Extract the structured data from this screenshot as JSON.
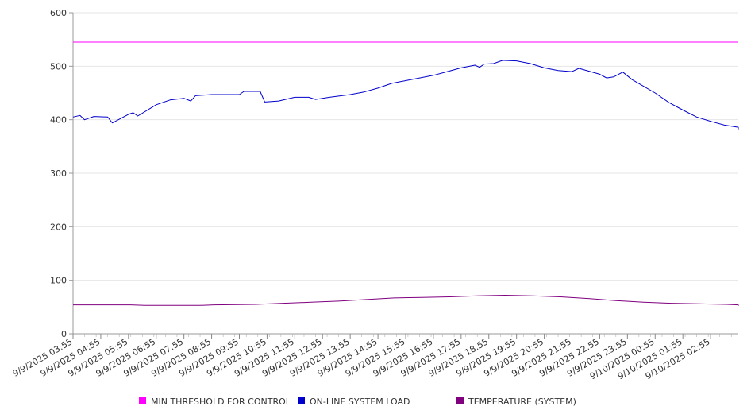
{
  "chart_data": {
    "type": "line",
    "title": "",
    "xlabel": "",
    "ylabel": "",
    "ylim": [
      0,
      600
    ],
    "y_ticks": [
      "0",
      "100",
      "200",
      "300",
      "400",
      "500",
      "600"
    ],
    "x_tick_labels": [
      "9/9/2025 03:55",
      "9/9/2025 04:55",
      "9/9/2025 05:55",
      "9/9/2025 06:55",
      "9/9/2025 07:55",
      "9/9/2025 08:55",
      "9/9/2025 09:55",
      "9/9/2025 10:55",
      "9/9/2025 11:55",
      "9/9/2025 12:55",
      "9/9/2025 13:55",
      "9/9/2025 14:55",
      "9/9/2025 15:55",
      "9/9/2025 16:55",
      "9/9/2025 17:55",
      "9/9/2025 18:55",
      "9/9/2025 19:55",
      "9/9/2025 20:55",
      "9/9/2025 21:55",
      "9/9/2025 22:55",
      "9/9/2025 23:55",
      "9/10/2025 00:55",
      "9/10/2025 01:55",
      "9/10/2025 02:55"
    ],
    "x_range": [
      "9/9/2025 03:55",
      "9/10/2025 03:55"
    ],
    "grid": {
      "horizontal": true,
      "vertical": false
    },
    "legend_position": "bottom",
    "series": [
      {
        "name": "MIN THRESHOLD FOR CONTROL",
        "color": "#ff00ff",
        "points": [
          [
            "9/9/2025 03:55",
            545
          ],
          [
            "9/10/2025 03:55",
            545
          ]
        ]
      },
      {
        "name": "ON-LINE SYSTEM LOAD",
        "color": "#0000cc",
        "points": [
          [
            "9/9/2025 03:55",
            405
          ],
          [
            "9/9/2025 04:10",
            408
          ],
          [
            "9/9/2025 04:20",
            400
          ],
          [
            "9/9/2025 04:40",
            406
          ],
          [
            "9/9/2025 05:10",
            405
          ],
          [
            "9/9/2025 05:20",
            394
          ],
          [
            "9/9/2025 05:40",
            403
          ],
          [
            "9/9/2025 05:55",
            410
          ],
          [
            "9/9/2025 06:05",
            413
          ],
          [
            "9/9/2025 06:15",
            407
          ],
          [
            "9/9/2025 06:55",
            428
          ],
          [
            "9/9/2025 07:25",
            437
          ],
          [
            "9/9/2025 07:55",
            440
          ],
          [
            "9/9/2025 08:10",
            435
          ],
          [
            "9/9/2025 08:20",
            445
          ],
          [
            "9/9/2025 08:55",
            447
          ],
          [
            "9/9/2025 09:55",
            447
          ],
          [
            "9/9/2025 10:05",
            453
          ],
          [
            "9/9/2025 10:40",
            453
          ],
          [
            "9/9/2025 10:50",
            433
          ],
          [
            "9/9/2025 11:20",
            435
          ],
          [
            "9/9/2025 11:55",
            442
          ],
          [
            "9/9/2025 12:25",
            442
          ],
          [
            "9/9/2025 12:40",
            438
          ],
          [
            "9/9/2025 13:10",
            442
          ],
          [
            "9/9/2025 13:55",
            447
          ],
          [
            "9/9/2025 14:25",
            452
          ],
          [
            "9/9/2025 14:55",
            459
          ],
          [
            "9/9/2025 15:25",
            468
          ],
          [
            "9/9/2025 15:55",
            473
          ],
          [
            "9/9/2025 16:25",
            478
          ],
          [
            "9/9/2025 16:55",
            483
          ],
          [
            "9/9/2025 17:25",
            490
          ],
          [
            "9/9/2025 17:55",
            497
          ],
          [
            "9/9/2025 18:25",
            502
          ],
          [
            "9/9/2025 18:35",
            498
          ],
          [
            "9/9/2025 18:45",
            504
          ],
          [
            "9/9/2025 19:05",
            505
          ],
          [
            "9/9/2025 19:25",
            511
          ],
          [
            "9/9/2025 19:55",
            510
          ],
          [
            "9/9/2025 20:25",
            505
          ],
          [
            "9/9/2025 20:55",
            497
          ],
          [
            "9/9/2025 21:25",
            492
          ],
          [
            "9/9/2025 21:55",
            490
          ],
          [
            "9/9/2025 22:10",
            496
          ],
          [
            "9/9/2025 22:55",
            485
          ],
          [
            "9/9/2025 23:10",
            478
          ],
          [
            "9/9/2025 23:25",
            480
          ],
          [
            "9/9/2025 23:45",
            489
          ],
          [
            "9/10/2025 00:05",
            475
          ],
          [
            "9/10/2025 00:25",
            465
          ],
          [
            "9/10/2025 00:55",
            450
          ],
          [
            "9/10/2025 01:25",
            432
          ],
          [
            "9/10/2025 01:55",
            418
          ],
          [
            "9/10/2025 02:25",
            405
          ],
          [
            "9/10/2025 02:55",
            397
          ],
          [
            "9/10/2025 03:25",
            390
          ],
          [
            "9/10/2025 03:55",
            386
          ],
          [
            "9/10/2025 04:25",
            385
          ],
          [
            "9/10/2025 04:55",
            383
          ],
          [
            "9/10/2025 05:25",
            382
          ],
          [
            "9/10/2025 05:55",
            382
          ]
        ]
      },
      {
        "name": "TEMPERATURE (SYSTEM)",
        "color": "#800080",
        "points": [
          [
            "9/9/2025 03:55",
            54
          ],
          [
            "9/9/2025 06:00",
            54
          ],
          [
            "9/9/2025 06:30",
            53
          ],
          [
            "9/9/2025 08:30",
            53
          ],
          [
            "9/9/2025 09:00",
            54
          ],
          [
            "9/9/2025 10:30",
            55
          ],
          [
            "9/9/2025 11:30",
            57
          ],
          [
            "9/9/2025 12:30",
            59
          ],
          [
            "9/9/2025 13:30",
            61
          ],
          [
            "9/9/2025 14:30",
            64
          ],
          [
            "9/9/2025 15:30",
            67
          ],
          [
            "9/9/2025 16:30",
            68
          ],
          [
            "9/9/2025 17:30",
            69
          ],
          [
            "9/9/2025 18:30",
            71
          ],
          [
            "9/9/2025 19:30",
            72
          ],
          [
            "9/9/2025 20:30",
            71
          ],
          [
            "9/9/2025 21:30",
            69
          ],
          [
            "9/9/2025 22:30",
            66
          ],
          [
            "9/9/2025 23:30",
            62
          ],
          [
            "9/10/2025 00:30",
            59
          ],
          [
            "9/10/2025 01:30",
            57
          ],
          [
            "9/10/2025 02:30",
            56
          ],
          [
            "9/10/2025 03:30",
            55
          ],
          [
            "9/10/2025 04:00",
            54
          ],
          [
            "9/10/2025 04:30",
            53
          ],
          [
            "9/10/2025 05:00",
            52
          ],
          [
            "9/10/2025 05:55",
            52
          ]
        ]
      }
    ]
  }
}
